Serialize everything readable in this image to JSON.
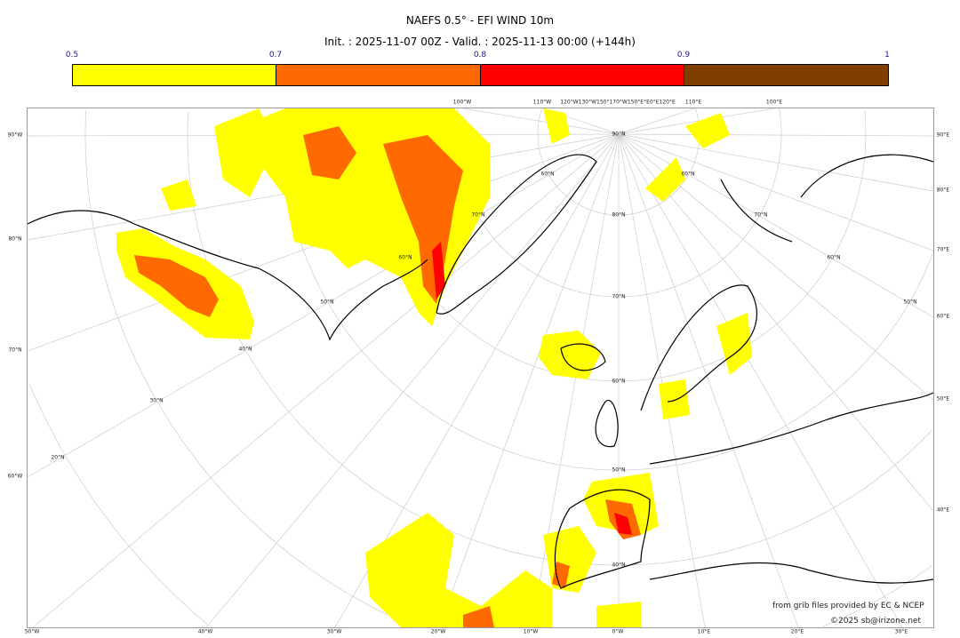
{
  "title": "NAEFS 0.5° - EFI WIND 10m",
  "subtitle": "Init. : 2025-11-07 00Z - Valid. : 2025-11-13 00:00 (+144h)",
  "colorbar": {
    "ticks": [
      "0.5",
      "0.7",
      "0.8",
      "0.9",
      "1"
    ],
    "colors": [
      "#ffff00",
      "#ff6a00",
      "#ff0000",
      "#7f3f00"
    ]
  },
  "labels": {
    "left": [
      "90°W",
      "80°N",
      "70°N",
      "60°W"
    ],
    "right": [
      "90°E",
      "80°E",
      "70°E",
      "60°E",
      "50°E",
      "40°E"
    ],
    "bottom": [
      "50°W",
      "40°W",
      "30°W",
      "20°W",
      "10°W",
      "0°W",
      "10°E",
      "20°E",
      "30°E"
    ],
    "top": [
      "100°W",
      "110°W",
      "120°W130°W150°170°W150°E°E0°E120°E",
      "110°E",
      "100°E"
    ],
    "inner": [
      "90°N",
      "80°N",
      "70°N",
      "60°N",
      "50°N",
      "40°N",
      "60°N",
      "70°N",
      "60°N",
      "50°N",
      "40°N",
      "30°N",
      "20°N",
      "60°N",
      "70°N",
      "60°N",
      "50°N"
    ]
  },
  "credits": [
    "from grib files provided by EC & NCEP",
    "©2025 sb@irizone.net"
  ]
}
